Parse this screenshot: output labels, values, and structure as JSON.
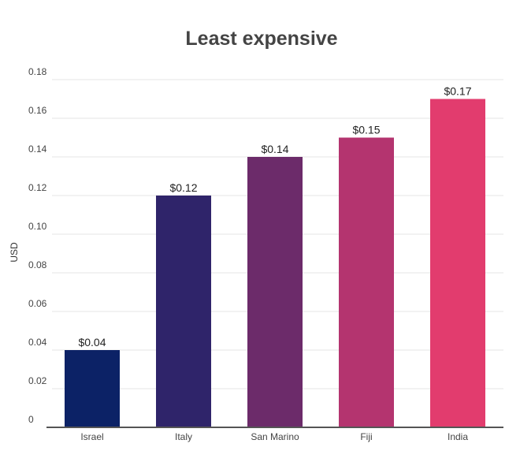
{
  "chart_data": {
    "type": "bar",
    "title": "Least expensive",
    "xlabel": "",
    "ylabel": "USD",
    "categories": [
      "Israel",
      "Italy",
      "San Marino",
      "Fiji",
      "India"
    ],
    "values": [
      0.04,
      0.12,
      0.14,
      0.15,
      0.17
    ],
    "data_labels": [
      "$0.04",
      "$0.12",
      "$0.14",
      "$0.15",
      "$0.17"
    ],
    "colors": [
      "#0c2266",
      "#2f246a",
      "#6c2b6a",
      "#b4346f",
      "#e23c6e"
    ],
    "ylim": [
      0,
      0.18
    ],
    "yticks": [
      "0",
      "0.02",
      "0.04",
      "0.06",
      "0.08",
      "0.10",
      "0.12",
      "0.14",
      "0.16",
      "0.18"
    ],
    "grid": true,
    "legend": "none"
  }
}
